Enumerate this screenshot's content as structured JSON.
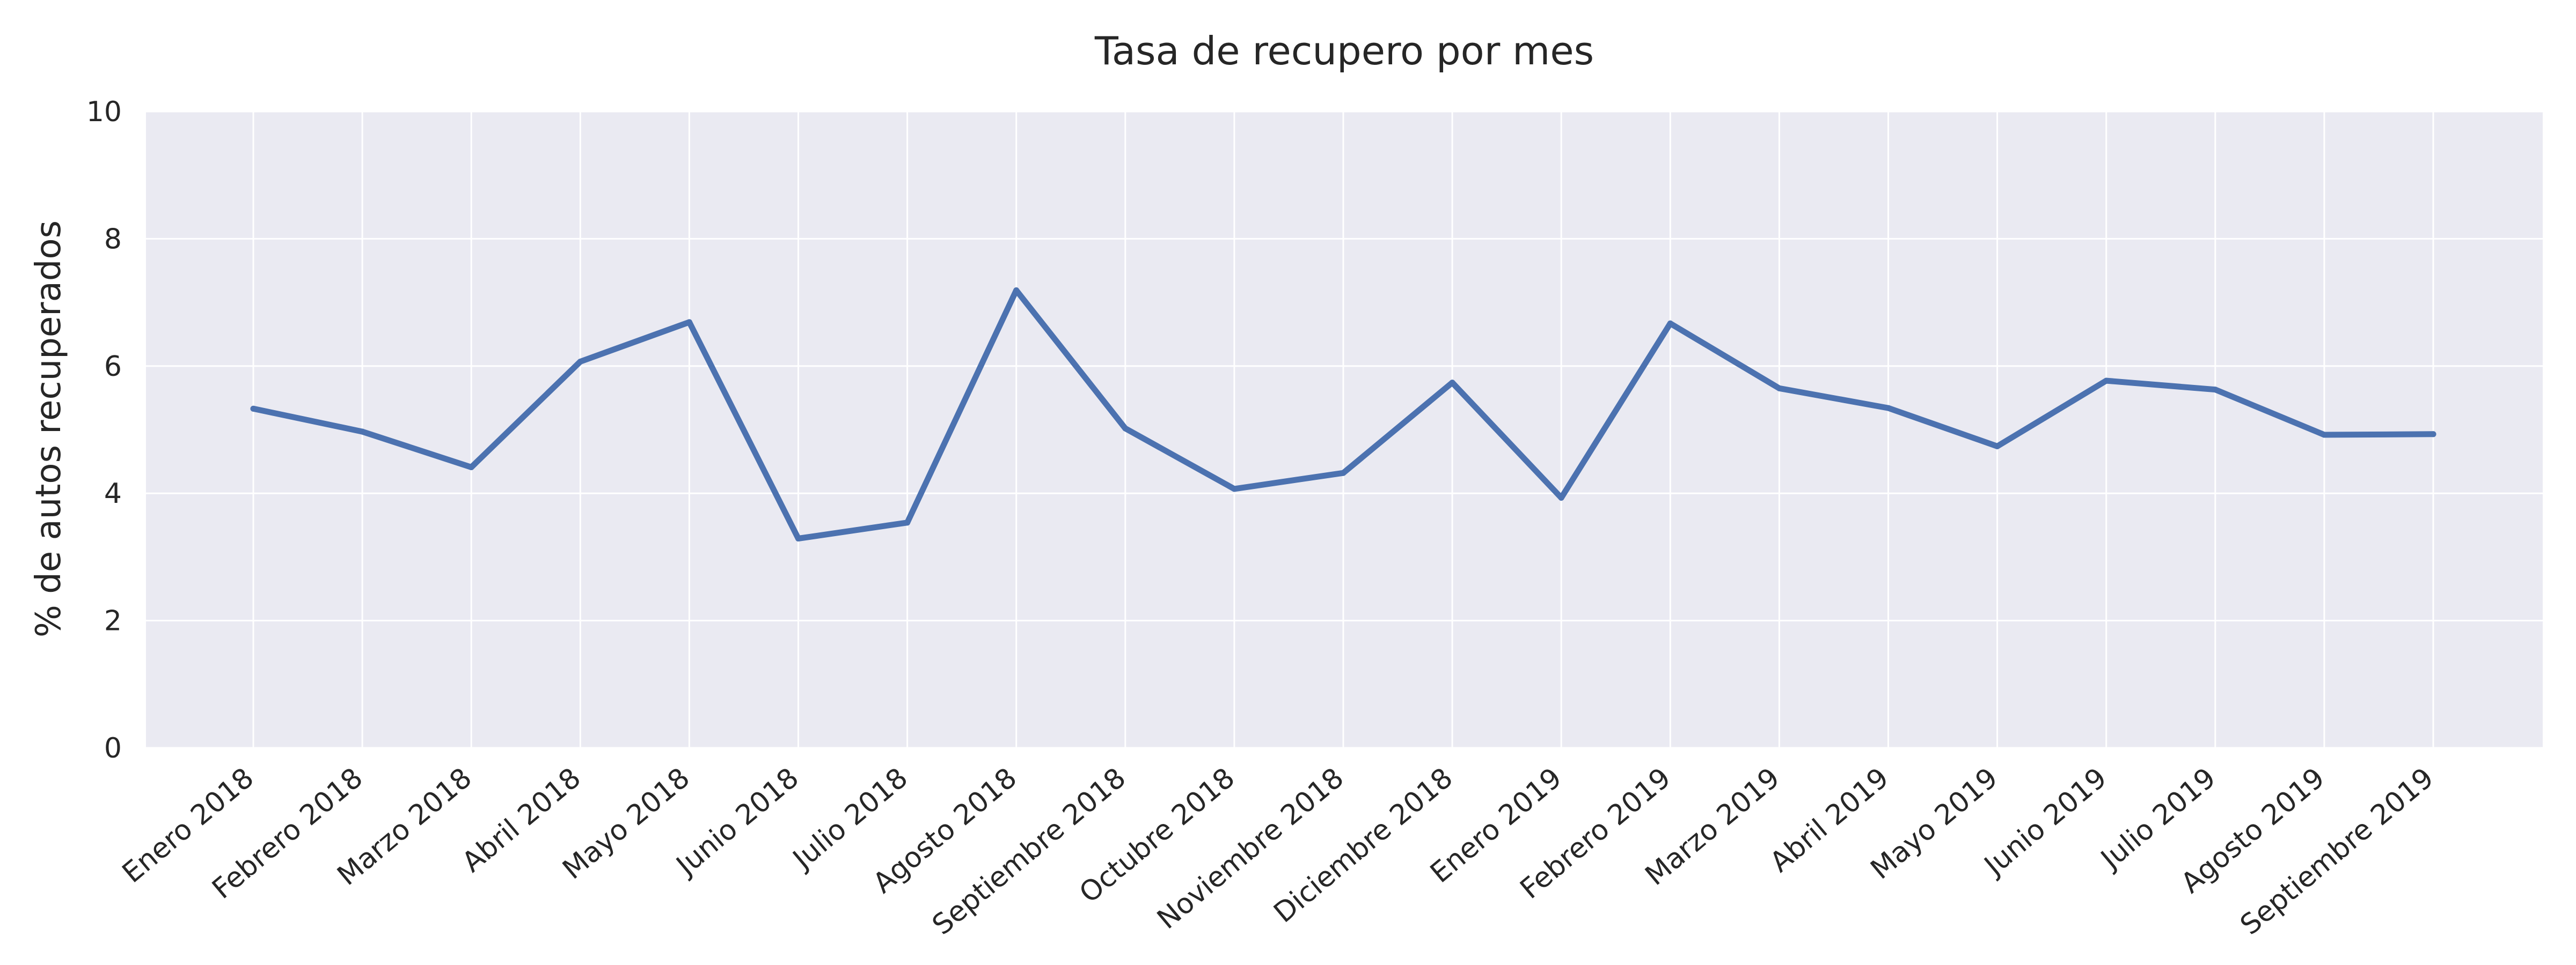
{
  "chart_data": {
    "type": "line",
    "title": "Tasa de recupero por mes",
    "xlabel": "",
    "ylabel": "% de autos recuperados",
    "categories": [
      "Enero 2018",
      "Febrero 2018",
      "Marzo 2018",
      "Abril 2018",
      "Mayo 2018",
      "Junio 2018",
      "Julio 2018",
      "Agosto 2018",
      "Septiembre 2018",
      "Octubre 2018",
      "Noviembre 2018",
      "Diciembre 2018",
      "Enero 2019",
      "Febrero 2019",
      "Marzo 2019",
      "Abril 2019",
      "Mayo 2019",
      "Junio 2019",
      "Julio 2019",
      "Agosto 2019",
      "Septiembre 2019"
    ],
    "series": [
      {
        "values": [
          5.33,
          4.97,
          4.41,
          6.07,
          6.69,
          3.29,
          3.54,
          7.19,
          5.02,
          4.07,
          4.32,
          5.74,
          3.93,
          6.67,
          5.65,
          5.34,
          4.74,
          5.77,
          5.63,
          4.92,
          4.93
        ],
        "color": "#4c72b0"
      }
    ],
    "yticks": [
      0,
      2,
      4,
      6,
      8,
      10
    ],
    "ylim": [
      0,
      10
    ],
    "grid": true,
    "background": "#eaeaf2",
    "grid_color": "#ffffff",
    "legend": "none"
  }
}
